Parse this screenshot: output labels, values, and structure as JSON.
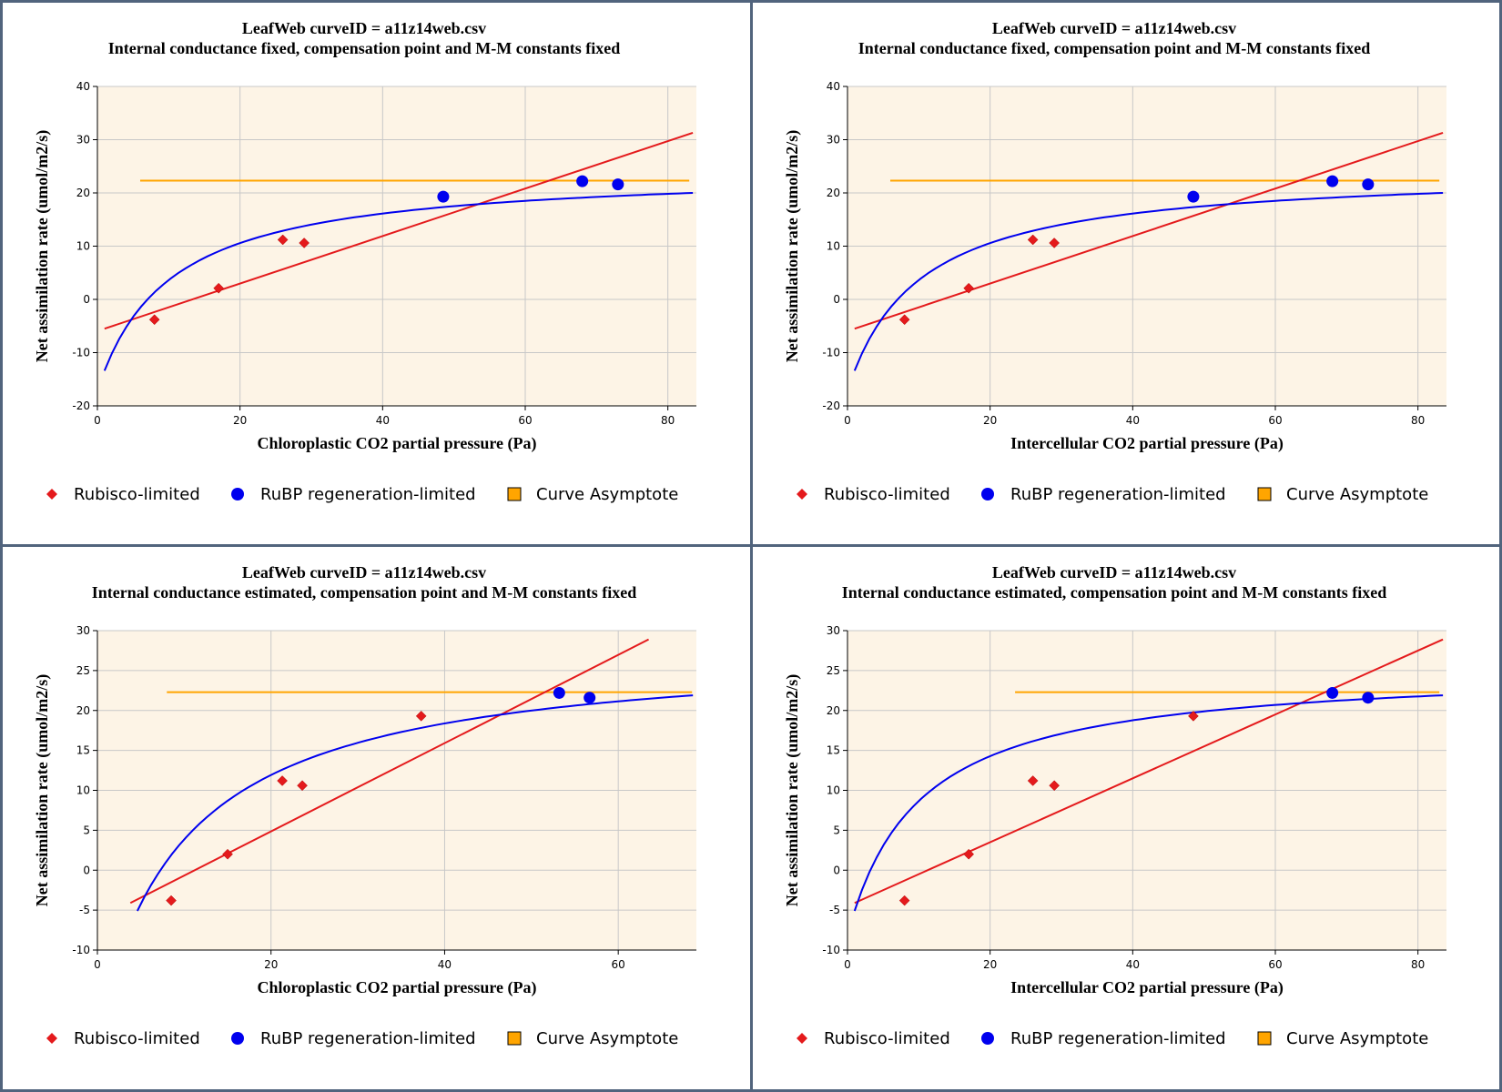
{
  "colors": {
    "plot_bg": "#fdf4e6",
    "grid": "#c8c8c8",
    "rubisco": "#e41a1c",
    "rubp": "#0000ee",
    "asymptote": "#ffa500",
    "frame": "#51647d"
  },
  "legend": {
    "rubisco": "Rubisco-limited",
    "rubp": "RuBP regeneration-limited",
    "asymptote": "Curve Asymptote"
  },
  "chart_data": [
    {
      "type": "scatter",
      "title": "LeafWeb curveID = a11z14web.csv",
      "subtitle": "Internal conductance fixed, compensation point and M-M constants fixed",
      "xlabel": "Chloroplastic CO2 partial pressure (Pa)",
      "ylabel": "Net assimilation rate (umol/m2/s)",
      "xlim": [
        0,
        84
      ],
      "ylim": [
        -20,
        40
      ],
      "xticks": [
        0,
        20,
        40,
        60,
        80
      ],
      "yticks": [
        -20,
        -10,
        0,
        10,
        20,
        30,
        40
      ],
      "legend_position": "bottom",
      "series": [
        {
          "kind": "rubisco",
          "points": [
            [
              8,
              -3.8
            ],
            [
              17,
              2.1
            ],
            [
              26,
              11.2
            ],
            [
              29,
              10.6
            ]
          ]
        },
        {
          "kind": "rubp",
          "points": [
            [
              48.5,
              19.3
            ],
            [
              68,
              22.2
            ],
            [
              73,
              21.6
            ]
          ]
        }
      ],
      "asymptote": {
        "y": 22.3,
        "x": [
          6,
          83
        ]
      },
      "rubisco_line": {
        "x": [
          1,
          83.5
        ],
        "y": [
          -5.5,
          31.3
        ]
      },
      "rubp_curve": {
        "x": [
          1,
          83.5
        ],
        "y": [
          -13.4,
          20.0
        ]
      }
    },
    {
      "type": "scatter",
      "title": "LeafWeb curveID = a11z14web.csv",
      "subtitle": "Internal conductance fixed, compensation point and M-M constants fixed",
      "xlabel": "Intercellular CO2 partial pressure (Pa)",
      "ylabel": "Net assimilation rate (umol/m2/s)",
      "xlim": [
        0,
        84
      ],
      "ylim": [
        -20,
        40
      ],
      "xticks": [
        0,
        20,
        40,
        60,
        80
      ],
      "yticks": [
        -20,
        -10,
        0,
        10,
        20,
        30,
        40
      ],
      "legend_position": "bottom",
      "series": [
        {
          "kind": "rubisco",
          "points": [
            [
              8,
              -3.8
            ],
            [
              17,
              2.1
            ],
            [
              26,
              11.2
            ],
            [
              29,
              10.6
            ]
          ]
        },
        {
          "kind": "rubp",
          "points": [
            [
              48.5,
              19.3
            ],
            [
              68,
              22.2
            ],
            [
              73,
              21.6
            ]
          ]
        }
      ],
      "asymptote": {
        "y": 22.3,
        "x": [
          6,
          83
        ]
      },
      "rubisco_line": {
        "x": [
          1,
          83.5
        ],
        "y": [
          -5.5,
          31.3
        ]
      },
      "rubp_curve": {
        "x": [
          1,
          83.5
        ],
        "y": [
          -13.4,
          20.0
        ]
      }
    },
    {
      "type": "scatter",
      "title": "LeafWeb curveID = a11z14web.csv",
      "subtitle": "Internal conductance estimated, compensation point and M-M constants fixed",
      "xlabel": "Chloroplastic CO2 partial pressure (Pa)",
      "ylabel": "Net assimilation rate (umol/m2/s)",
      "xlim": [
        0,
        69
      ],
      "ylim": [
        -10,
        30
      ],
      "xticks": [
        0,
        20,
        40,
        60
      ],
      "yticks": [
        -10,
        -5,
        0,
        5,
        10,
        15,
        20,
        25,
        30
      ],
      "legend_position": "bottom",
      "series": [
        {
          "kind": "rubisco",
          "points": [
            [
              8.5,
              -3.8
            ],
            [
              15,
              2.0
            ],
            [
              21.3,
              11.2
            ],
            [
              23.6,
              10.6
            ],
            [
              37.3,
              19.3
            ]
          ]
        },
        {
          "kind": "rubp",
          "points": [
            [
              53.2,
              22.2
            ],
            [
              56.7,
              21.6
            ]
          ]
        }
      ],
      "asymptote": {
        "y": 22.3,
        "x": [
          8,
          68.5
        ]
      },
      "rubisco_line": {
        "x": [
          3.8,
          63.5
        ],
        "y": [
          -4.1,
          28.9
        ]
      },
      "rubp_curve": {
        "x": [
          4.6,
          68.6
        ],
        "y": [
          -5.1,
          21.9
        ]
      }
    },
    {
      "type": "scatter",
      "title": "LeafWeb curveID = a11z14web.csv",
      "subtitle": "Internal conductance estimated, compensation point and M-M constants fixed",
      "xlabel": "Intercellular CO2 partial pressure (Pa)",
      "ylabel": "Net assimilation rate (umol/m2/s)",
      "xlim": [
        0,
        84
      ],
      "ylim": [
        -10,
        30
      ],
      "xticks": [
        0,
        20,
        40,
        60,
        80
      ],
      "yticks": [
        -10,
        -5,
        0,
        5,
        10,
        15,
        20,
        25,
        30
      ],
      "legend_position": "bottom",
      "series": [
        {
          "kind": "rubisco",
          "points": [
            [
              8,
              -3.8
            ],
            [
              17,
              2.0
            ],
            [
              26,
              11.2
            ],
            [
              29,
              10.6
            ],
            [
              48.5,
              19.3
            ]
          ]
        },
        {
          "kind": "rubp",
          "points": [
            [
              68,
              22.2
            ],
            [
              73,
              21.6
            ]
          ]
        }
      ],
      "asymptote": {
        "y": 22.3,
        "x": [
          23.5,
          83
        ]
      },
      "rubisco_line": {
        "x": [
          1,
          83.5
        ],
        "y": [
          -4.1,
          28.9
        ]
      },
      "rubp_curve": {
        "x": [
          1,
          83.5
        ],
        "y": [
          -5.1,
          21.9
        ]
      }
    }
  ]
}
